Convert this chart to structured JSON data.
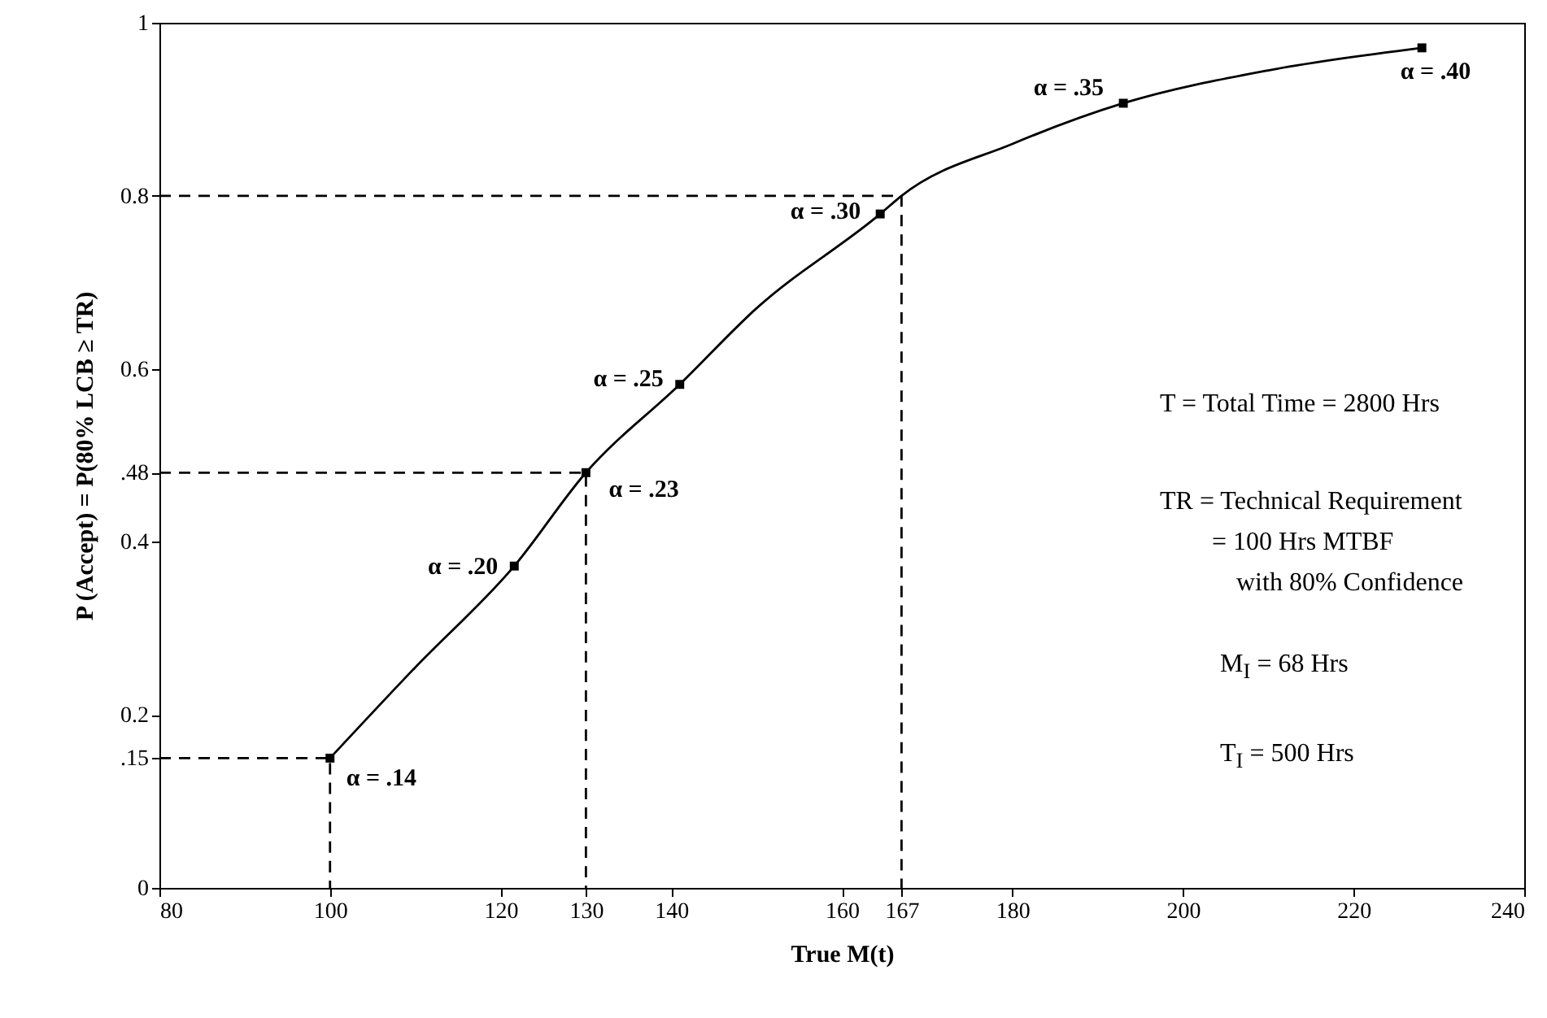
{
  "chart_data": {
    "type": "line",
    "xlabel": "True M(t)",
    "ylabel": "P (Accept) = P(80% LCB ≥ TR)",
    "xlim": [
      80,
      240
    ],
    "ylim": [
      0,
      1
    ],
    "xticks": [
      80,
      100,
      120,
      130,
      140,
      160,
      167,
      180,
      200,
      220,
      240
    ],
    "yticks": [
      0,
      {
        "value": 0.15,
        "label": ".15"
      },
      0.2,
      0.4,
      {
        "value": 0.48,
        "label": ".48"
      },
      0.6,
      0.8,
      1
    ],
    "grid": false,
    "series": [
      {
        "color": "#000000",
        "line_style": "solid",
        "x": [
          100,
          110,
          121.6,
          130,
          141,
          150,
          164.5,
          167,
          180,
          193,
          210,
          228
        ],
        "values": [
          0.15,
          0.255,
          0.372,
          0.48,
          0.582,
          0.67,
          0.779,
          0.8,
          0.86,
          0.907,
          0.945,
          0.971
        ]
      },
      {
        "type": "scatter",
        "color": "#000000",
        "marker": "square",
        "x": [
          100,
          121.6,
          130,
          141,
          164.5,
          193,
          228
        ],
        "values": [
          0.15,
          0.372,
          0.48,
          0.582,
          0.779,
          0.907,
          0.971
        ]
      },
      {
        "type": "line",
        "color": "#000000",
        "line_style": "dashed",
        "x": [
          80,
          100,
          100
        ],
        "values": [
          0.15,
          0.15,
          0
        ]
      },
      {
        "type": "line",
        "color": "#000000",
        "line_style": "dashed",
        "x": [
          80,
          130,
          130
        ],
        "values": [
          0.48,
          0.48,
          0
        ]
      },
      {
        "type": "line",
        "color": "#000000",
        "line_style": "dashed",
        "x": [
          80,
          167,
          167
        ],
        "values": [
          0.8,
          0.8,
          0
        ]
      }
    ],
    "annotations": [
      {
        "text": "α = .14",
        "x": 100,
        "y": 0.15
      },
      {
        "text": "α = .20",
        "x": 121.6,
        "y": 0.372
      },
      {
        "text": "α = .23",
        "x": 130,
        "y": 0.48
      },
      {
        "text": "α = .25",
        "x": 141,
        "y": 0.582
      },
      {
        "text": "α = .30",
        "x": 164.5,
        "y": 0.779
      },
      {
        "text": "α = .35",
        "x": 193,
        "y": 0.907
      },
      {
        "text": "α = .40",
        "x": 228,
        "y": 0.971
      },
      "T = Total Time = 2800 Hrs",
      "TR = Technical Requirement",
      "= 100 Hrs MTBF",
      "with 80% Confidence",
      "M$_{I}$ = 68 Hrs",
      "T$_{I}$ = 500 Hrs"
    ]
  }
}
